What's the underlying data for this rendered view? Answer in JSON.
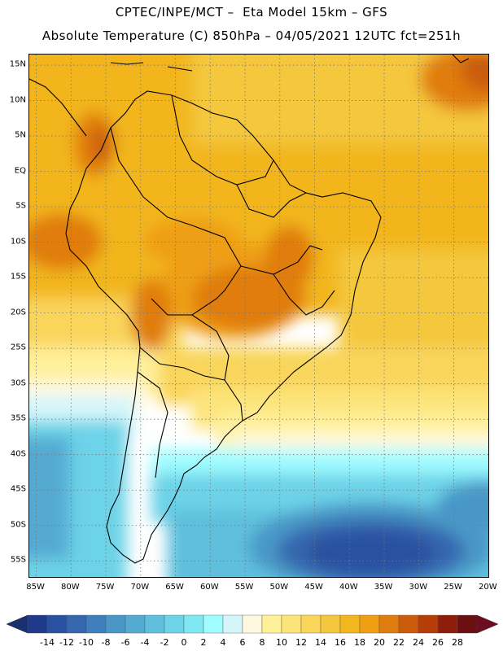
{
  "header": {
    "line1": "CPTEC/INPE/MCT –  Eta Model 15km – GFS",
    "line2": "Absolute Temperature (C) 850hPa – 04/05/2021 12UTC fct=251h"
  },
  "map": {
    "lat_labels": [
      "15N",
      "10N",
      "5N",
      "EQ",
      "5S",
      "10S",
      "15S",
      "20S",
      "25S",
      "30S",
      "35S",
      "40S",
      "45S",
      "50S",
      "55S"
    ],
    "lon_labels": [
      "85W",
      "80W",
      "75W",
      "70W",
      "65W",
      "60W",
      "55W",
      "50W",
      "45W",
      "40W",
      "35W",
      "30W",
      "25W",
      "20W"
    ],
    "lat_range": [
      -57.5,
      16.5
    ],
    "lon_range": [
      -86,
      -19.8
    ],
    "grid": "dotted"
  },
  "colorbar": {
    "ticks": [
      "-14",
      "-12",
      "-10",
      "-8",
      "-6",
      "-4",
      "-2",
      "0",
      "2",
      "4",
      "6",
      "8",
      "10",
      "12",
      "14",
      "16",
      "18",
      "20",
      "22",
      "24",
      "26",
      "28"
    ],
    "colors": [
      "#1f3a8a",
      "#2a51a0",
      "#3467ae",
      "#3f7fbb",
      "#4a97c7",
      "#55aad2",
      "#5fbfdc",
      "#6dd3e8",
      "#7fe8f2",
      "#9ffcff",
      "#d4f6fb",
      "#fff8e0",
      "#fff09a",
      "#fde47a",
      "#f9d55c",
      "#f4c73e",
      "#f2b61f",
      "#ef9f12",
      "#e07d10",
      "#cc5c0c",
      "#b53d08",
      "#8e1e0a",
      "#6a1010"
    ],
    "arrow_low": "#1a2f70",
    "arrow_high": "#6e0c20",
    "unit": "C"
  }
}
